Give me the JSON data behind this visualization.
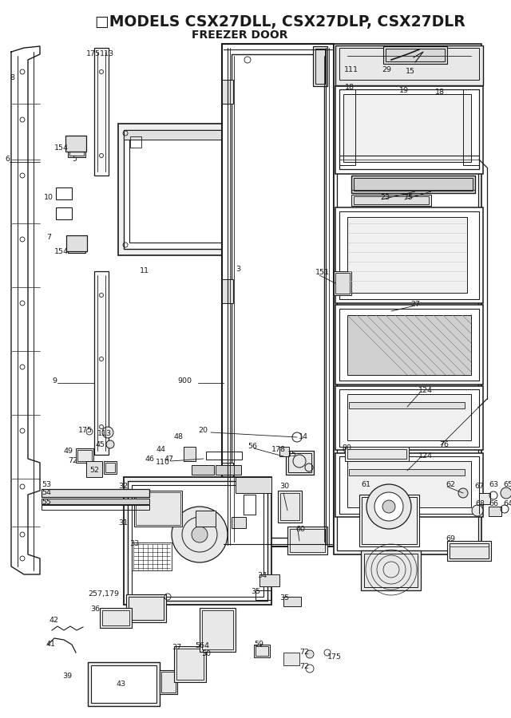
{
  "title": "MODELS CSX27DLL, CSX27DLP, CSX27DLR",
  "subtitle": "FREEZER DOOR",
  "bg_color": "#ffffff",
  "line_color": "#1a1a1a",
  "title_fontsize": 13.5,
  "subtitle_fontsize": 10,
  "fig_width": 6.4,
  "fig_height": 9.0,
  "dpi": 100
}
